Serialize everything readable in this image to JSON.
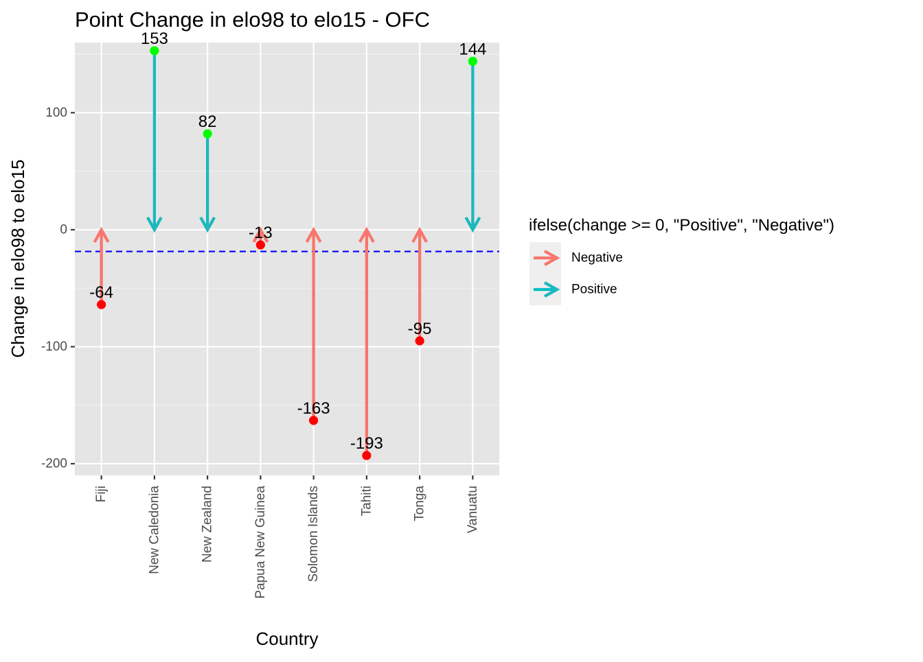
{
  "chart_data": {
    "type": "arrow-lollipop",
    "title": "Point Change in elo98 to elo15 - OFC",
    "xlabel": "Country",
    "ylabel": "Change in elo98 to elo15",
    "categories": [
      "Fiji",
      "New Caledonia",
      "New Zealand",
      "Papua New Guinea",
      "Solomon Islands",
      "Tahiti",
      "Tonga",
      "Vanuatu"
    ],
    "values": [
      -64,
      153,
      82,
      -13,
      -163,
      -193,
      -95,
      144
    ],
    "value_labels": [
      "-64",
      "153",
      "82",
      "-13",
      "-163",
      "-193",
      "-95",
      "144"
    ],
    "ylim": [
      -210,
      160
    ],
    "yticks": [
      -200,
      -100,
      0,
      100
    ],
    "ytick_labels": [
      "-200",
      "-100",
      "0",
      "100"
    ],
    "reference_line": {
      "value": -18.6,
      "style": "dashed",
      "color": "#0000ff"
    },
    "legend": {
      "title": "ifelse(change >= 0, \"Positive\", \"Negative\")",
      "position": "right",
      "entries": [
        {
          "label": "Negative",
          "color": "#f8766d"
        },
        {
          "label": "Positive",
          "color": "#00bfc4"
        }
      ]
    },
    "colors": {
      "negative_arrow": "#f8766d",
      "positive_arrow": "#1db8bd",
      "negative_point": "#ff0000",
      "positive_point": "#00ff00",
      "panel_background": "#e5e5e5",
      "grid": "#ffffff"
    },
    "grid": true
  }
}
